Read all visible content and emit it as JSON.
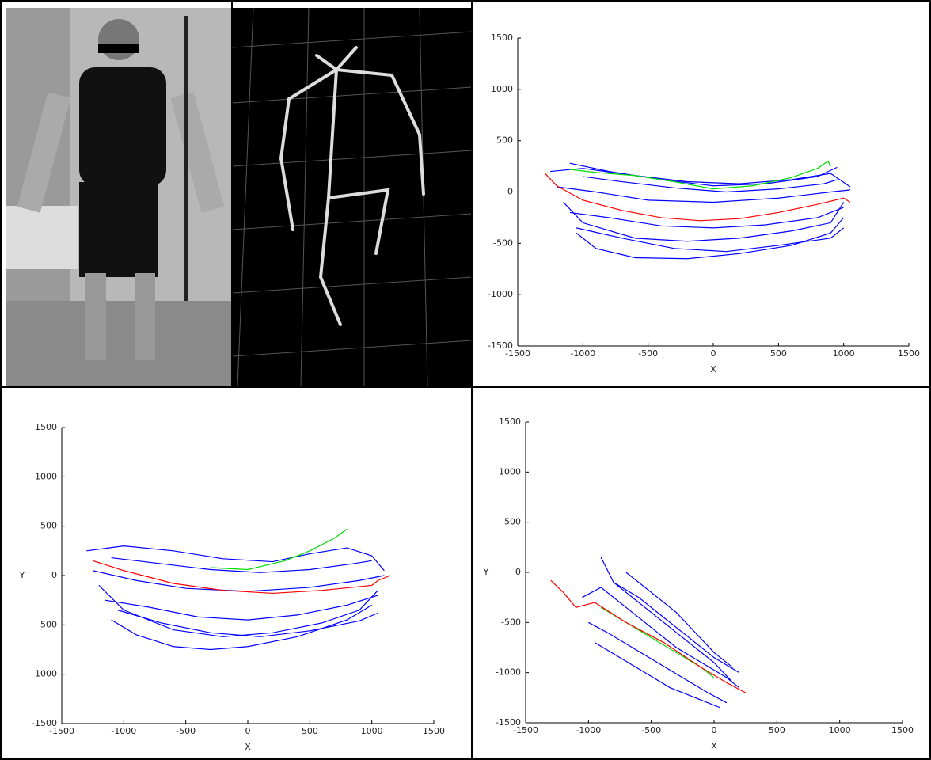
{
  "chart_data": [
    {
      "type": "line",
      "xlabel": "X",
      "xlim": [
        -1500,
        1500
      ],
      "ylim": [
        -1500,
        1500
      ],
      "xticks": [
        -1500,
        -1000,
        -500,
        0,
        500,
        1000,
        1500
      ],
      "yticks": [
        -1500,
        -1000,
        -500,
        0,
        500,
        1000,
        1500
      ],
      "series": [
        {
          "color": "#0000ff",
          "x": [
            -1250,
            -1000,
            -600,
            -200,
            200,
            600,
            900,
            1050
          ],
          "values": [
            200,
            230,
            160,
            100,
            80,
            120,
            180,
            50
          ]
        },
        {
          "color": "#0000ff",
          "x": [
            -1150,
            -1000,
            -600,
            -200,
            200,
            600,
            900,
            1000
          ],
          "values": [
            -100,
            -300,
            -450,
            -480,
            -450,
            -380,
            -300,
            -100
          ]
        },
        {
          "color": "#0000ff",
          "x": [
            -1050,
            -900,
            -600,
            -200,
            200,
            600,
            900,
            1000
          ],
          "values": [
            -400,
            -550,
            -640,
            -650,
            -600,
            -520,
            -400,
            -250
          ]
        },
        {
          "color": "#0000ff",
          "x": [
            -1200,
            -900,
            -500,
            0,
            500,
            900,
            1050
          ],
          "values": [
            50,
            0,
            -80,
            -100,
            -60,
            0,
            20
          ]
        },
        {
          "color": "#0000ff",
          "x": [
            -1100,
            -800,
            -400,
            0,
            400,
            800,
            1000
          ],
          "values": [
            -200,
            -250,
            -330,
            -350,
            -320,
            -250,
            -150
          ]
        },
        {
          "color": "#0000ff",
          "x": [
            -1000,
            -700,
            -300,
            100,
            500,
            850,
            950
          ],
          "values": [
            150,
            100,
            40,
            0,
            30,
            80,
            120
          ]
        },
        {
          "color": "#0000ff",
          "x": [
            -1100,
            -800,
            -400,
            0,
            400,
            800,
            950
          ],
          "values": [
            280,
            200,
            120,
            60,
            80,
            150,
            240
          ]
        },
        {
          "color": "#0000ff",
          "x": [
            -1050,
            -700,
            -300,
            100,
            500,
            900,
            1000
          ],
          "values": [
            -350,
            -450,
            -550,
            -580,
            -520,
            -450,
            -350
          ]
        },
        {
          "color": "#00dd00",
          "x": [
            -1100,
            -900,
            -600,
            -300,
            0,
            300,
            600,
            800,
            880,
            900
          ],
          "values": [
            220,
            190,
            160,
            100,
            30,
            60,
            140,
            230,
            300,
            250
          ]
        },
        {
          "color": "#ff0000",
          "x": [
            -1290,
            -1200,
            -1000,
            -700,
            -400,
            -100,
            200,
            500,
            800,
            1000,
            1050
          ],
          "values": [
            180,
            60,
            -80,
            -180,
            -250,
            -280,
            -260,
            -200,
            -120,
            -60,
            -100
          ]
        }
      ]
    },
    {
      "type": "line",
      "xlabel": "X",
      "ylabel": "Y",
      "xlim": [
        -1500,
        1500
      ],
      "ylim": [
        -1500,
        1500
      ],
      "xticks": [
        -1500,
        -1000,
        -500,
        0,
        500,
        1000,
        1500
      ],
      "yticks": [
        -1500,
        -1000,
        -500,
        0,
        500,
        1000,
        1500
      ],
      "series": [
        {
          "color": "#0000ff",
          "x": [
            -1300,
            -1000,
            -600,
            -200,
            200,
            500,
            800,
            1000,
            1100
          ],
          "values": [
            250,
            300,
            250,
            170,
            140,
            220,
            280,
            200,
            50
          ]
        },
        {
          "color": "#0000ff",
          "x": [
            -1200,
            -1000,
            -600,
            -200,
            200,
            600,
            900,
            1050
          ],
          "values": [
            -100,
            -350,
            -550,
            -620,
            -580,
            -480,
            -350,
            -150
          ]
        },
        {
          "color": "#0000ff",
          "x": [
            -1100,
            -900,
            -600,
            -300,
            0,
            400,
            800,
            1000
          ],
          "values": [
            -450,
            -600,
            -720,
            -750,
            -720,
            -620,
            -450,
            -300
          ]
        },
        {
          "color": "#0000ff",
          "x": [
            -1250,
            -900,
            -500,
            0,
            500,
            900,
            1100
          ],
          "values": [
            50,
            -50,
            -130,
            -160,
            -120,
            -50,
            0
          ]
        },
        {
          "color": "#0000ff",
          "x": [
            -1150,
            -800,
            -400,
            0,
            400,
            800,
            1050
          ],
          "values": [
            -250,
            -320,
            -420,
            -450,
            -400,
            -300,
            -200
          ]
        },
        {
          "color": "#0000ff",
          "x": [
            -1100,
            -700,
            -300,
            100,
            500,
            850,
            1000
          ],
          "values": [
            180,
            120,
            60,
            30,
            60,
            120,
            150
          ]
        },
        {
          "color": "#0000ff",
          "x": [
            -1050,
            -700,
            -300,
            100,
            500,
            900,
            1050
          ],
          "values": [
            -350,
            -480,
            -580,
            -620,
            -560,
            -460,
            -380
          ]
        },
        {
          "color": "#00dd00",
          "x": [
            -300,
            0,
            300,
            500,
            700,
            800
          ],
          "values": [
            80,
            60,
            150,
            250,
            380,
            470
          ]
        },
        {
          "color": "#ff0000",
          "x": [
            -1250,
            -1000,
            -600,
            -200,
            200,
            600,
            1000,
            1050,
            1150
          ],
          "values": [
            150,
            50,
            -80,
            -150,
            -180,
            -150,
            -100,
            -50,
            0
          ]
        }
      ]
    },
    {
      "type": "line",
      "xlabel": "X",
      "ylabel": "Y",
      "xlim": [
        -1500,
        1500
      ],
      "ylim": [
        -1500,
        1500
      ],
      "xticks": [
        -1500,
        -1000,
        -500,
        0,
        500,
        1000,
        1500
      ],
      "yticks": [
        -1500,
        -1000,
        -500,
        0,
        500,
        1000,
        1500
      ],
      "series": [
        {
          "color": "#0000ff",
          "x": [
            -1050,
            -900,
            -700,
            -500,
            -300,
            -100,
            100,
            200
          ],
          "values": [
            -250,
            -150,
            -350,
            -550,
            -750,
            -900,
            -1050,
            -1150
          ]
        },
        {
          "color": "#0000ff",
          "x": [
            -900,
            -800,
            -600,
            -400,
            -200,
            0,
            150
          ],
          "values": [
            150,
            -100,
            -300,
            -500,
            -700,
            -900,
            -1100
          ]
        },
        {
          "color": "#0000ff",
          "x": [
            -1000,
            -850,
            -650,
            -450,
            -250,
            -50,
            100
          ],
          "values": [
            -500,
            -600,
            -750,
            -900,
            -1050,
            -1200,
            -1300
          ]
        },
        {
          "color": "#0000ff",
          "x": [
            -800,
            -600,
            -400,
            -200,
            0,
            200
          ],
          "values": [
            -100,
            -250,
            -450,
            -650,
            -850,
            -1000
          ]
        },
        {
          "color": "#0000ff",
          "x": [
            -950,
            -750,
            -550,
            -350,
            -150,
            50
          ],
          "values": [
            -700,
            -850,
            -1000,
            -1150,
            -1250,
            -1350
          ]
        },
        {
          "color": "#0000ff",
          "x": [
            -700,
            -500,
            -300,
            -150,
            0,
            150
          ],
          "values": [
            0,
            -200,
            -400,
            -600,
            -800,
            -950
          ]
        },
        {
          "color": "#00dd00",
          "x": [
            -900,
            -700,
            -500,
            -300,
            -100,
            0
          ],
          "values": [
            -350,
            -500,
            -650,
            -800,
            -950,
            -1050
          ]
        },
        {
          "color": "#ff0000",
          "x": [
            -1300,
            -1200,
            -1100,
            -950,
            -700,
            -400,
            -100,
            100,
            250
          ],
          "values": [
            -80,
            -200,
            -350,
            -300,
            -500,
            -700,
            -950,
            -1100,
            -1200
          ]
        }
      ]
    }
  ]
}
